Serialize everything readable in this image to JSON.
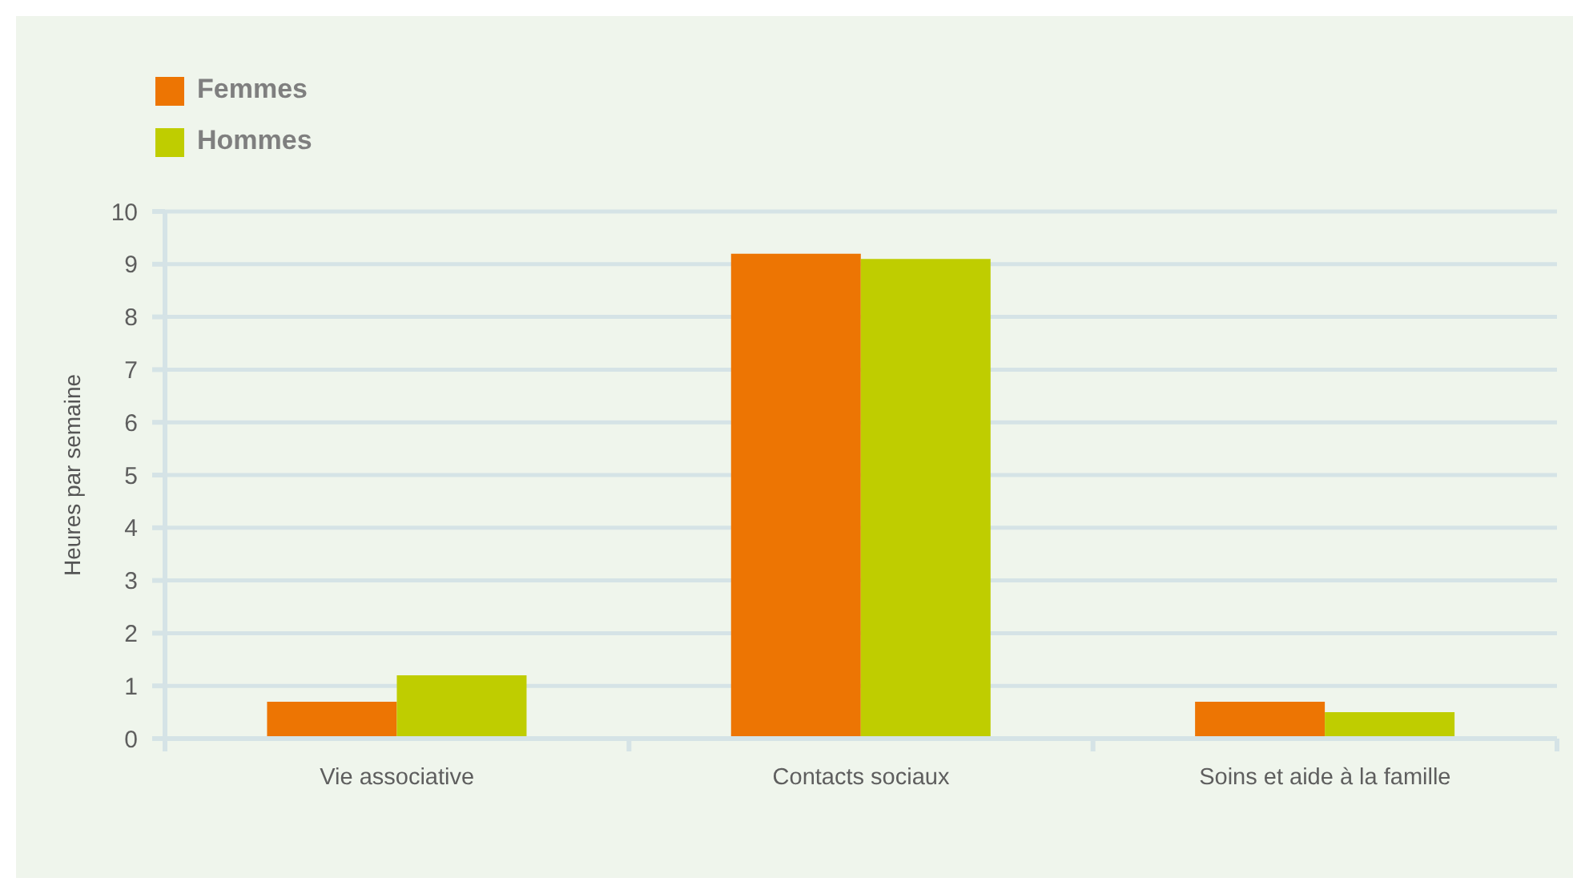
{
  "chart_data": {
    "type": "bar",
    "categories": [
      "Vie associative",
      "Contacts sociaux",
      "Soins et aide à la famille"
    ],
    "series": [
      {
        "name": "Femmes",
        "color": "#ed7503",
        "values": [
          0.7,
          9.2,
          0.7
        ]
      },
      {
        "name": "Hommes",
        "color": "#bfcd00",
        "values": [
          1.2,
          9.1,
          0.5
        ]
      }
    ],
    "ylabel": "Heures par semaine",
    "ylim": [
      0,
      10
    ],
    "yticks": [
      0,
      1,
      2,
      3,
      4,
      5,
      6,
      7,
      8,
      9,
      10
    ],
    "grid": "y",
    "legend": "top left"
  }
}
